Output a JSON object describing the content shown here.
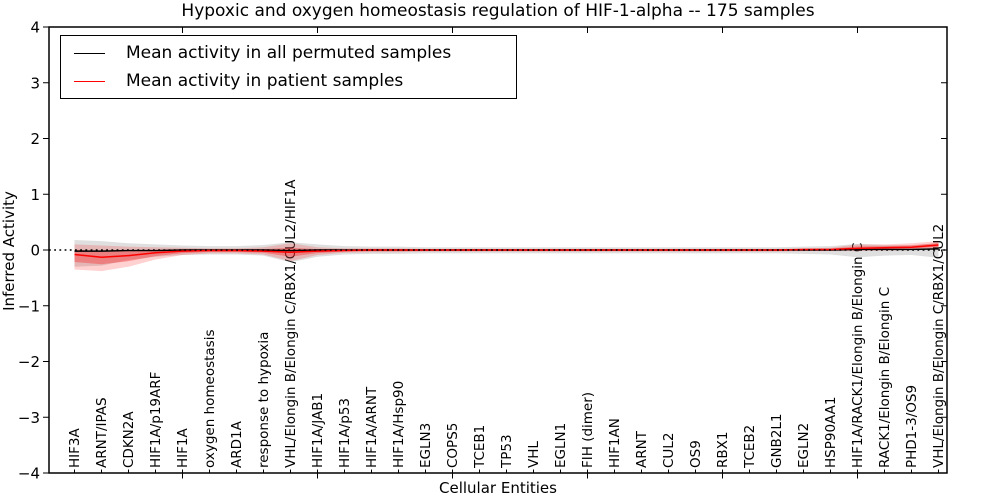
{
  "title": "Hypoxic and oxygen homeostasis regulation of HIF-1-alpha -- 175 samples",
  "chart_data": {
    "type": "line",
    "title": "Hypoxic and oxygen homeostasis regulation of HIF-1-alpha -- 175 samples",
    "xlabel": "Cellular Entities",
    "ylabel": "Inferred Activity",
    "ylim": [
      -4,
      4
    ],
    "y_major_ticks": [
      4,
      3,
      2,
      1,
      0,
      -1,
      -2,
      -3,
      -4
    ],
    "x_major_tick_indices": [
      4,
      9,
      14,
      19,
      24,
      29
    ],
    "grid": false,
    "legend_position": "upper left",
    "reference_line": {
      "y": 0,
      "color": "#000000",
      "style": "dotted"
    },
    "categories": [
      "HIF3A",
      "ARNT/IPAS",
      "CDKN2A",
      "HIF1A/p19ARF",
      "HIF1A",
      "oxygen homeostasis",
      "ARD1A",
      "response to hypoxia",
      "VHL/Elongin B/Elongin C/RBX1/CUL2/HIF1A",
      "HIF1A/JAB1",
      "HIF1A/p53",
      "HIF1A/ARNT",
      "HIF1A/Hsp90",
      "EGLN3",
      "COPS5",
      "TCEB1",
      "TP53",
      "VHL",
      "EGLN1",
      "FIH (dimer)",
      "HIF1AN",
      "ARNT",
      "CUL2",
      "OS9",
      "RBX1",
      "TCEB2",
      "GNB2L1",
      "EGLN2",
      "HSP90AA1",
      "HIF1A/RACK1/Elongin B/Elongin C",
      "RACK1/Elongin B/Elongin C",
      "PHD1-3/OS9",
      "VHL/Elongin B/Elongin C/RBX1/CUL2"
    ],
    "series": [
      {
        "name": "Mean activity in all permuted samples",
        "color": "#000000",
        "band_color": "#808080",
        "band_opacity": 0.25,
        "mean": [
          -0.02,
          -0.02,
          -0.01,
          -0.01,
          0,
          0,
          0,
          0,
          -0.01,
          0,
          0,
          0,
          0,
          0,
          0,
          0,
          0,
          0,
          0,
          0,
          0,
          0,
          0,
          0,
          0,
          0,
          0,
          0,
          0,
          0.01,
          0.01,
          0.01,
          0.02
        ],
        "band_low": [
          -0.3,
          -0.28,
          -0.18,
          -0.12,
          -0.09,
          -0.08,
          -0.08,
          -0.1,
          -0.22,
          -0.12,
          -0.08,
          -0.07,
          -0.07,
          -0.06,
          -0.06,
          -0.06,
          -0.06,
          -0.06,
          -0.06,
          -0.06,
          -0.06,
          -0.06,
          -0.06,
          -0.06,
          -0.06,
          -0.06,
          -0.06,
          -0.07,
          -0.08,
          -0.13,
          -0.1,
          -0.09,
          -0.14
        ],
        "band_high": [
          0.18,
          0.16,
          0.12,
          0.1,
          0.08,
          0.07,
          0.07,
          0.09,
          0.14,
          0.1,
          0.07,
          0.06,
          0.06,
          0.05,
          0.05,
          0.05,
          0.05,
          0.05,
          0.05,
          0.05,
          0.05,
          0.05,
          0.05,
          0.05,
          0.05,
          0.05,
          0.05,
          0.06,
          0.07,
          0.11,
          0.09,
          0.08,
          0.12
        ]
      },
      {
        "name": "Mean activity in patient samples",
        "color": "#ff0000",
        "band_color": "#ff0000",
        "band_opacity": 0.18,
        "inner_band_fraction": 0.5,
        "inner_band_opacity": 0.3,
        "mean": [
          -0.08,
          -0.13,
          -0.1,
          -0.05,
          -0.02,
          -0.01,
          -0.01,
          -0.02,
          -0.04,
          -0.02,
          -0.01,
          0,
          0,
          0,
          0,
          0,
          0,
          0,
          0,
          0,
          0,
          0,
          0,
          0,
          0,
          0,
          0,
          0.01,
          0.01,
          0.03,
          0.04,
          0.05,
          0.09
        ],
        "band_low": [
          -0.35,
          -0.38,
          -0.3,
          -0.17,
          -0.09,
          -0.06,
          -0.06,
          -0.08,
          -0.2,
          -0.09,
          -0.05,
          -0.04,
          -0.04,
          -0.03,
          -0.03,
          -0.03,
          -0.03,
          -0.03,
          -0.03,
          -0.03,
          -0.03,
          -0.03,
          -0.03,
          -0.03,
          -0.03,
          -0.03,
          -0.03,
          -0.02,
          -0.02,
          -0.02,
          -0.01,
          0.0,
          0.02
        ],
        "band_high": [
          0.1,
          0.08,
          0.06,
          0.05,
          0.04,
          0.03,
          0.03,
          0.05,
          0.12,
          0.05,
          0.03,
          0.03,
          0.03,
          0.02,
          0.02,
          0.02,
          0.02,
          0.02,
          0.02,
          0.02,
          0.02,
          0.02,
          0.02,
          0.02,
          0.02,
          0.02,
          0.02,
          0.03,
          0.04,
          0.1,
          0.1,
          0.12,
          0.16
        ]
      }
    ]
  }
}
